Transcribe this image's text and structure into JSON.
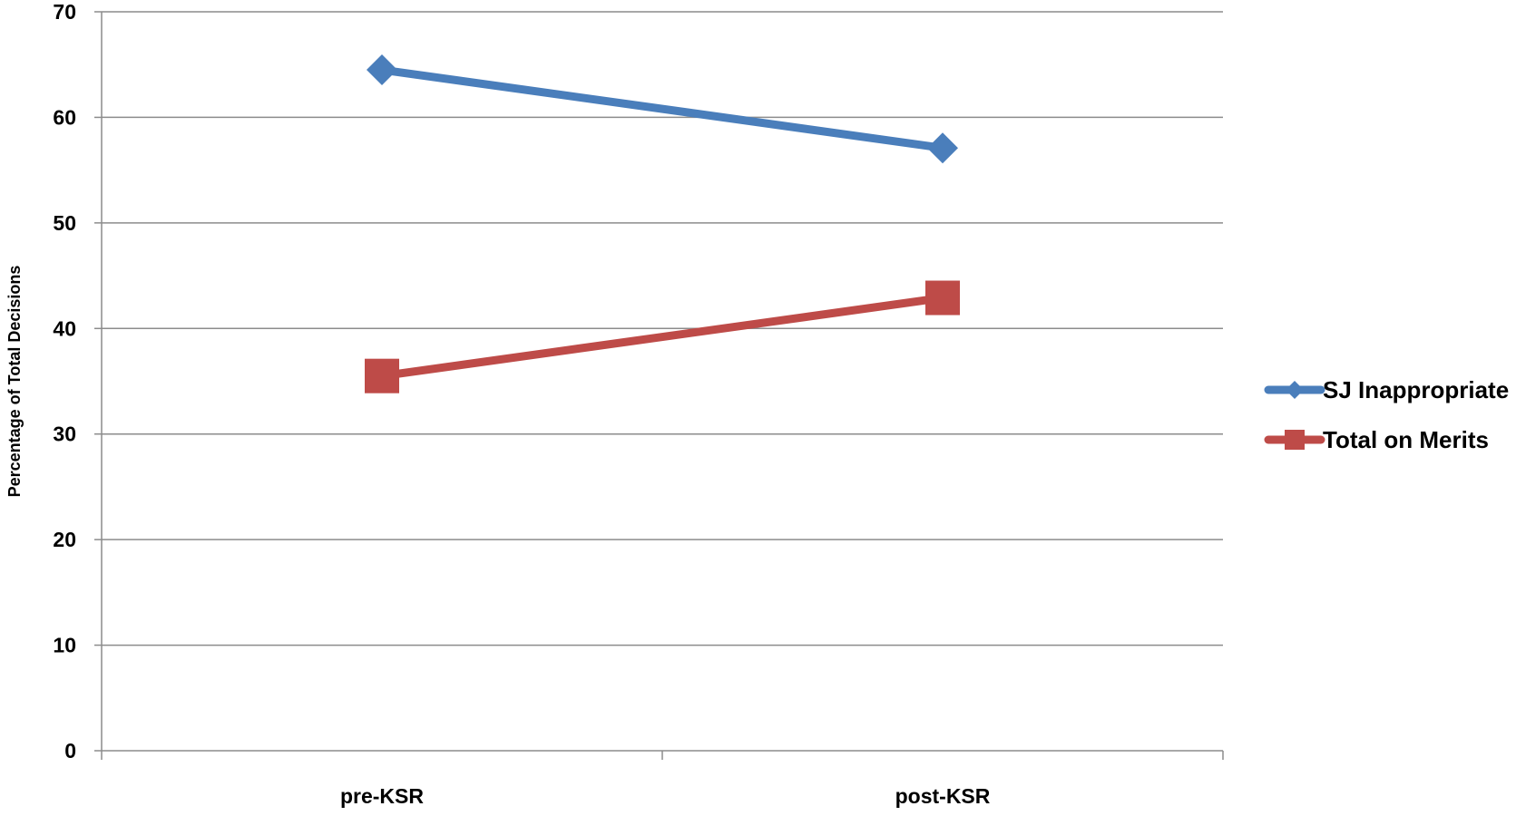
{
  "chart_data": {
    "type": "line",
    "title": "",
    "xlabel": "",
    "ylabel": "Percentage of Total Decisions",
    "categories": [
      "pre-KSR",
      "post-KSR"
    ],
    "ylim": [
      0,
      70
    ],
    "yticks": [
      0,
      10,
      20,
      30,
      40,
      50,
      60,
      70
    ],
    "grid": true,
    "legend_position": "right",
    "series": [
      {
        "name": "SJ Inappropriate",
        "values": [
          64.5,
          57.1
        ],
        "color": "#4a7ebb",
        "marker": "diamond"
      },
      {
        "name": "Total on Merits",
        "values": [
          35.5,
          42.9
        ],
        "color": "#be4b48",
        "marker": "square"
      }
    ]
  }
}
